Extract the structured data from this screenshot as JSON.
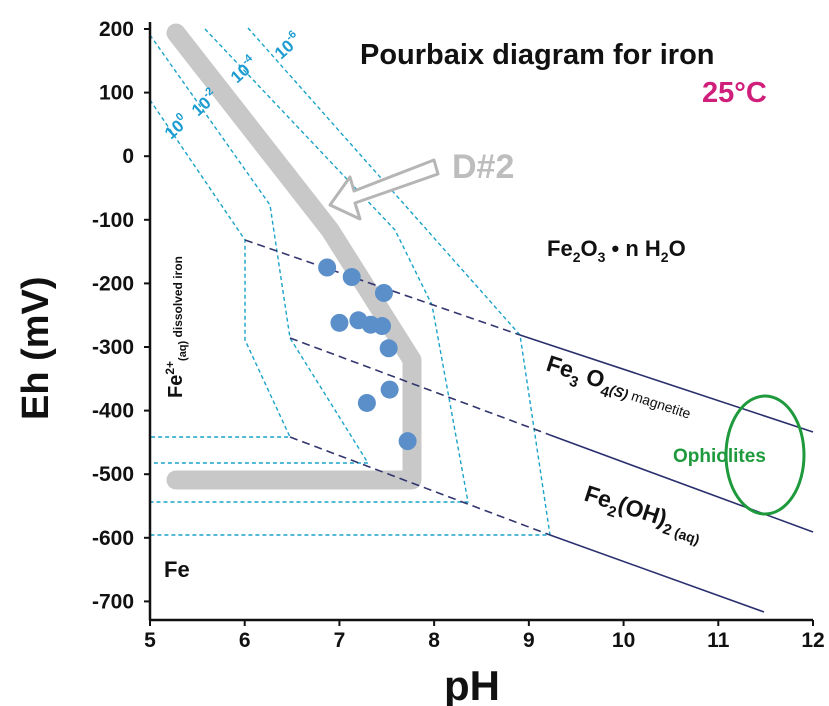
{
  "title": "Pourbaix diagram for iron",
  "temperature": "25°C",
  "x_axis": {
    "label": "pH",
    "min": 5,
    "max": 12,
    "ticks": [
      "5",
      "6",
      "7",
      "8",
      "9",
      "10",
      "11",
      "12"
    ]
  },
  "y_axis": {
    "label": "Eh (mV)",
    "min": -750,
    "max": 200,
    "ticks": [
      "200",
      "100",
      "0",
      "-100",
      "-200",
      "-300",
      "-400",
      "-500",
      "-600",
      "-700"
    ]
  },
  "concentration_labels": {
    "c0": {
      "base": "10",
      "exp": "0"
    },
    "c2": {
      "base": "10",
      "exp": "-2"
    },
    "c4": {
      "base": "10",
      "exp": "-4"
    },
    "c6": {
      "base": "10",
      "exp": "-6"
    }
  },
  "regions": {
    "dissolved_iron": {
      "main": "Fe",
      "sup": "2+",
      "sub": "(aq)",
      "rest": " dissolved iron"
    },
    "hematite": {
      "a": "Fe",
      "a_sub": "2",
      "b": "O",
      "b_sub": "3",
      "c": " • n H",
      "c_sub": "2",
      "d": "O"
    },
    "magnetite": {
      "a": "Fe",
      "a_sub": "3",
      "b": " O",
      "b_sub": "4",
      "c": "(S)",
      "d": " magnetite"
    },
    "ferrous_hydroxide": {
      "a": "Fe",
      "a_sub": "2",
      "b": "(OH)",
      "b_sub": "2",
      "c": " (aq)"
    },
    "metal": "Fe"
  },
  "annotation": "D#2",
  "ophiolites_label": "Ophiolites",
  "colors": {
    "boundary_solid": "#2b2f6e",
    "boundary_dashed": "#33366e",
    "concentration_lines": "#1aa3c8",
    "trend_band": "#c8c8c8",
    "samples": "#5b8fc9",
    "ophiolites": "#1e9a3c",
    "temperature": "#d01f7a"
  },
  "samples": [
    {
      "ph": 6.87,
      "eh": -175
    },
    {
      "ph": 7.13,
      "eh": -190
    },
    {
      "ph": 7.47,
      "eh": -215
    },
    {
      "ph": 7.0,
      "eh": -262
    },
    {
      "ph": 7.2,
      "eh": -258
    },
    {
      "ph": 7.33,
      "eh": -265
    },
    {
      "ph": 7.45,
      "eh": -267
    },
    {
      "ph": 7.52,
      "eh": -302
    },
    {
      "ph": 7.53,
      "eh": -367
    },
    {
      "ph": 7.29,
      "eh": -388
    },
    {
      "ph": 7.72,
      "eh": -448
    }
  ]
}
